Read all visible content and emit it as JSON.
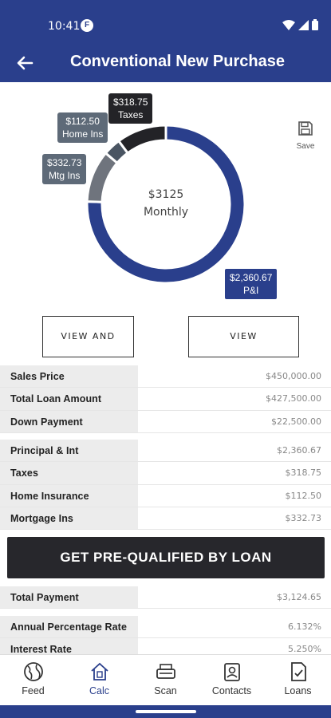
{
  "status": {
    "time": "10:41",
    "app_badge": "F"
  },
  "header": {
    "title": "Conventional New Purchase"
  },
  "chart": {
    "center_amount": "$3125",
    "center_label": "Monthly",
    "labels": {
      "taxes_amount": "$318.75",
      "taxes_name": "Taxes",
      "home_amount": "$112.50",
      "home_name": "Home Ins",
      "mtg_amount": "$332.73",
      "mtg_name": "Mtg Ins",
      "pi_amount": "$2,360.67",
      "pi_name": "P&I"
    },
    "save_label": "Save"
  },
  "chart_data": {
    "type": "pie",
    "categories": [
      "P&I",
      "Mtg Ins",
      "Home Ins",
      "Taxes"
    ],
    "values": [
      2360.67,
      332.73,
      112.5,
      318.75
    ],
    "colors": [
      "#2a3f8c",
      "#6f747d",
      "#4a5562",
      "#232327"
    ]
  },
  "actions": {
    "share_label": "VIEW AND SHARE",
    "amort_label": "VIEW AMORTIZATION"
  },
  "loan_table": [
    {
      "label": "Sales Price",
      "value": "$450,000.00"
    },
    {
      "label": "Total Loan Amount",
      "value": "$427,500.00"
    },
    {
      "label": "Down Payment",
      "value": "$22,500.00"
    }
  ],
  "payment_table": [
    {
      "label": "Principal & Int",
      "value": "$2,360.67"
    },
    {
      "label": "Taxes",
      "value": "$318.75"
    },
    {
      "label": "Home Insurance",
      "value": "$112.50"
    },
    {
      "label": "Mortgage Ins",
      "value": "$332.73"
    }
  ],
  "prequal_label": "GET PRE-QUALIFIED BY LOAN",
  "total_table": [
    {
      "label": "Total Payment",
      "value": "$3,124.65"
    }
  ],
  "rate_table": [
    {
      "label": "Annual Percentage Rate",
      "value": "6.132%"
    },
    {
      "label": "Interest Rate",
      "value": "5.250%"
    }
  ],
  "nav": [
    {
      "label": "Feed",
      "icon": "globe-icon"
    },
    {
      "label": "Calc",
      "icon": "calculator-house-icon"
    },
    {
      "label": "Scan",
      "icon": "scanner-icon"
    },
    {
      "label": "Contacts",
      "icon": "contacts-icon"
    },
    {
      "label": "Loans",
      "icon": "loan-document-icon"
    }
  ]
}
